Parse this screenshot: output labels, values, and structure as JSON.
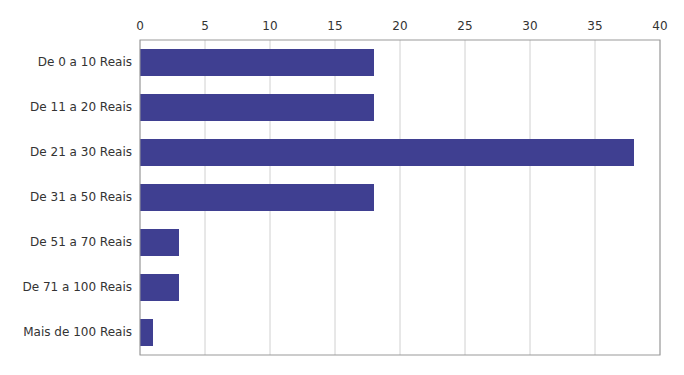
{
  "chart_data": {
    "type": "bar",
    "orientation": "horizontal",
    "categories": [
      "Mais de 100 Reais",
      "De 71 a 100 Reais",
      "De 51 a 70 Reais",
      "De 31 a 50 Reais",
      "De 21 a 30 Reais",
      "De 11 a 20 Reais",
      "De 0 a 10 Reais"
    ],
    "values": [
      1,
      3,
      3,
      18,
      38,
      18,
      18
    ],
    "color": "#3F3F91",
    "xlim": [
      0,
      40
    ],
    "xticks": [
      0,
      5,
      10,
      15,
      20,
      25,
      30,
      35,
      40
    ],
    "grid": true
  }
}
